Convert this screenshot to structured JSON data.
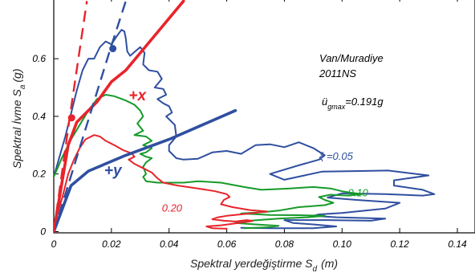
{
  "chart_data": {
    "type": "line",
    "title": "",
    "xlabel": "Spektral yerdeğiştirme S",
    "xlabel_sub": "d",
    "xlabel_unit": "(m)",
    "ylabel": "Spektral İvme S",
    "ylabel_sub": "a",
    "ylabel_unit": "(g)",
    "xlim": [
      0,
      0.15
    ],
    "ylim": [
      0,
      0.8
    ],
    "xticks": [
      "0",
      "0.02",
      "0.04",
      "0.06",
      "0.08",
      "0.10",
      "0.12",
      "0.14"
    ],
    "xtick_values": [
      0,
      0.02,
      0.04,
      0.06,
      0.08,
      0.1,
      0.12,
      0.14
    ],
    "yticks": [
      "0",
      "0.2",
      "0.4",
      "0.6"
    ],
    "ytick_values": [
      0,
      0.2,
      0.4,
      0.6
    ],
    "grid": false,
    "record": {
      "station": "Van/Muradiye",
      "code": "2011NS",
      "pga_label": "ü",
      "pga_sub": "gmax",
      "pga_value": "=0.191g"
    },
    "colors": {
      "blue": "#2f4fa0",
      "green": "#169a2a",
      "red": "#e8242b"
    },
    "curve_labels": [
      {
        "text": "ξ =0.05",
        "color": "blue",
        "x": 0.092,
        "y": 0.25
      },
      {
        "text": "0.10",
        "color": "green",
        "x": 0.102,
        "y": 0.123
      },
      {
        "text": "0.20",
        "color": "red",
        "x": 0.0375,
        "y": 0.07
      },
      {
        "text": "+x",
        "color": "red",
        "x": 0.026,
        "y": 0.455
      },
      {
        "text": "+y",
        "color": "blue",
        "x": 0.0175,
        "y": 0.195
      }
    ],
    "series": [
      {
        "style": "spectrum",
        "color": "blue",
        "points": [
          [
            0,
            0.19
          ],
          [
            0.002,
            0.26
          ],
          [
            0.004,
            0.33
          ],
          [
            0.006,
            0.41
          ],
          [
            0.008,
            0.49
          ],
          [
            0.01,
            0.56
          ],
          [
            0.012,
            0.6
          ],
          [
            0.014,
            0.6
          ],
          [
            0.016,
            0.64
          ],
          [
            0.018,
            0.66
          ],
          [
            0.02,
            0.65
          ],
          [
            0.022,
            0.68
          ],
          [
            0.0235,
            0.7
          ],
          [
            0.0245,
            0.695
          ],
          [
            0.025,
            0.67
          ],
          [
            0.0255,
            0.625
          ],
          [
            0.0265,
            0.61
          ],
          [
            0.028,
            0.623
          ],
          [
            0.03,
            0.64
          ],
          [
            0.0315,
            0.62
          ],
          [
            0.031,
            0.58
          ],
          [
            0.033,
            0.56
          ],
          [
            0.036,
            0.555
          ],
          [
            0.0375,
            0.53
          ],
          [
            0.035,
            0.5
          ],
          [
            0.038,
            0.495
          ],
          [
            0.039,
            0.475
          ],
          [
            0.036,
            0.46
          ],
          [
            0.038,
            0.445
          ],
          [
            0.04,
            0.435
          ],
          [
            0.041,
            0.413
          ],
          [
            0.039,
            0.4
          ],
          [
            0.04,
            0.39
          ],
          [
            0.042,
            0.37
          ],
          [
            0.0425,
            0.33
          ],
          [
            0.04,
            0.3
          ],
          [
            0.04,
            0.28
          ],
          [
            0.0425,
            0.255
          ],
          [
            0.045,
            0.25
          ],
          [
            0.05,
            0.253
          ],
          [
            0.055,
            0.275
          ],
          [
            0.06,
            0.28
          ],
          [
            0.065,
            0.27
          ],
          [
            0.07,
            0.3
          ],
          [
            0.075,
            0.303
          ],
          [
            0.08,
            0.293
          ],
          [
            0.085,
            0.31
          ],
          [
            0.09,
            0.29
          ],
          [
            0.094,
            0.265
          ],
          [
            0.092,
            0.25
          ],
          [
            0.085,
            0.23
          ],
          [
            0.075,
            0.2
          ],
          [
            0.08,
            0.18
          ],
          [
            0.093,
            0.208
          ],
          [
            0.104,
            0.21
          ],
          [
            0.116,
            0.212
          ],
          [
            0.13,
            0.195
          ],
          [
            0.118,
            0.178
          ],
          [
            0.118,
            0.16
          ],
          [
            0.128,
            0.145
          ],
          [
            0.132,
            0.13
          ],
          [
            0.128,
            0.125
          ],
          [
            0.115,
            0.13
          ],
          [
            0.1,
            0.133
          ],
          [
            0.095,
            0.118
          ],
          [
            0.105,
            0.11
          ],
          [
            0.12,
            0.1
          ],
          [
            0.115,
            0.08
          ],
          [
            0.105,
            0.07
          ],
          [
            0.1,
            0.065
          ],
          [
            0.092,
            0.06
          ],
          [
            0.09,
            0.055
          ],
          [
            0.098,
            0.05
          ],
          [
            0.115,
            0.045
          ],
          [
            0.11,
            0.038
          ],
          [
            0.095,
            0.04
          ],
          [
            0.08,
            0.04
          ],
          [
            0.083,
            0.03
          ],
          [
            0.09,
            0.025
          ],
          [
            0.098,
            0.018
          ],
          [
            0.09,
            0.012
          ],
          [
            0.075,
            0.012
          ],
          [
            0.065,
            0.013
          ]
        ]
      },
      {
        "style": "spectrum",
        "color": "green",
        "points": [
          [
            0,
            0.19
          ],
          [
            0.003,
            0.26
          ],
          [
            0.006,
            0.32
          ],
          [
            0.009,
            0.37
          ],
          [
            0.012,
            0.42
          ],
          [
            0.015,
            0.46
          ],
          [
            0.018,
            0.475
          ],
          [
            0.021,
            0.47
          ],
          [
            0.025,
            0.455
          ],
          [
            0.028,
            0.44
          ],
          [
            0.03,
            0.42
          ],
          [
            0.031,
            0.4
          ],
          [
            0.029,
            0.375
          ],
          [
            0.031,
            0.35
          ],
          [
            0.028,
            0.335
          ],
          [
            0.032,
            0.33
          ],
          [
            0.034,
            0.315
          ],
          [
            0.031,
            0.3
          ],
          [
            0.034,
            0.29
          ],
          [
            0.032,
            0.275
          ],
          [
            0.03,
            0.27
          ],
          [
            0.032,
            0.26
          ],
          [
            0.034,
            0.255
          ],
          [
            0.032,
            0.24
          ],
          [
            0.031,
            0.225
          ],
          [
            0.032,
            0.2
          ],
          [
            0.031,
            0.19
          ],
          [
            0.032,
            0.175
          ],
          [
            0.036,
            0.17
          ],
          [
            0.045,
            0.17
          ],
          [
            0.05,
            0.175
          ],
          [
            0.058,
            0.17
          ],
          [
            0.066,
            0.155
          ],
          [
            0.072,
            0.145
          ],
          [
            0.082,
            0.15
          ],
          [
            0.09,
            0.155
          ],
          [
            0.096,
            0.15
          ],
          [
            0.1,
            0.14
          ],
          [
            0.103,
            0.135
          ],
          [
            0.107,
            0.13
          ],
          [
            0.102,
            0.125
          ],
          [
            0.096,
            0.128
          ],
          [
            0.092,
            0.12
          ],
          [
            0.094,
            0.11
          ],
          [
            0.097,
            0.1
          ],
          [
            0.094,
            0.092
          ],
          [
            0.085,
            0.085
          ],
          [
            0.078,
            0.073
          ],
          [
            0.073,
            0.068
          ],
          [
            0.065,
            0.063
          ],
          [
            0.075,
            0.058
          ],
          [
            0.085,
            0.057
          ],
          [
            0.094,
            0.055
          ],
          [
            0.088,
            0.05
          ],
          [
            0.078,
            0.045
          ],
          [
            0.068,
            0.038
          ],
          [
            0.063,
            0.03
          ],
          [
            0.07,
            0.025
          ],
          [
            0.078,
            0.02
          ],
          [
            0.074,
            0.015
          ],
          [
            0.066,
            0.012
          ]
        ]
      },
      {
        "style": "spectrum",
        "color": "red",
        "points": [
          [
            0,
            0.02
          ],
          [
            0.003,
            0.12
          ],
          [
            0.005,
            0.2
          ],
          [
            0.007,
            0.25
          ],
          [
            0.009,
            0.29
          ],
          [
            0.011,
            0.32
          ],
          [
            0.014,
            0.335
          ],
          [
            0.016,
            0.33
          ],
          [
            0.018,
            0.315
          ],
          [
            0.021,
            0.3
          ],
          [
            0.024,
            0.283
          ],
          [
            0.027,
            0.272
          ],
          [
            0.028,
            0.26
          ],
          [
            0.026,
            0.25
          ],
          [
            0.028,
            0.235
          ],
          [
            0.03,
            0.225
          ],
          [
            0.034,
            0.205
          ],
          [
            0.036,
            0.185
          ],
          [
            0.038,
            0.17
          ],
          [
            0.043,
            0.16
          ],
          [
            0.05,
            0.15
          ],
          [
            0.056,
            0.14
          ],
          [
            0.06,
            0.13
          ],
          [
            0.061,
            0.12
          ],
          [
            0.059,
            0.11
          ],
          [
            0.058,
            0.095
          ],
          [
            0.062,
            0.085
          ],
          [
            0.068,
            0.075
          ],
          [
            0.074,
            0.07
          ],
          [
            0.067,
            0.062
          ],
          [
            0.06,
            0.055
          ],
          [
            0.057,
            0.05
          ],
          [
            0.055,
            0.043
          ],
          [
            0.059,
            0.038
          ],
          [
            0.063,
            0.035
          ],
          [
            0.067,
            0.04
          ],
          [
            0.069,
            0.037
          ],
          [
            0.064,
            0.03
          ],
          [
            0.058,
            0.022
          ],
          [
            0.053,
            0.018
          ],
          [
            0.055,
            0.012
          ],
          [
            0.06,
            0.01
          ]
        ]
      },
      {
        "style": "capacity",
        "color": "blue",
        "points": [
          [
            0,
            0
          ],
          [
            0.006,
            0.16
          ],
          [
            0.012,
            0.21
          ],
          [
            0.025,
            0.265
          ],
          [
            0.04,
            0.32
          ],
          [
            0.063,
            0.42
          ]
        ]
      },
      {
        "style": "capacity",
        "color": "red",
        "points": [
          [
            0,
            0
          ],
          [
            0.005,
            0.3
          ],
          [
            0.008,
            0.38
          ],
          [
            0.015,
            0.45
          ],
          [
            0.02,
            0.52
          ],
          [
            0.025,
            0.56
          ],
          [
            0.035,
            0.68
          ],
          [
            0.045,
            0.8
          ]
        ]
      },
      {
        "style": "dashed",
        "color": "blue",
        "points": [
          [
            0,
            0
          ],
          [
            0.0195,
            0.63
          ],
          [
            0.025,
            0.8
          ]
        ]
      },
      {
        "style": "dashed",
        "color": "red",
        "points": [
          [
            0,
            0
          ],
          [
            0.0055,
            0.395
          ],
          [
            0.0115,
            0.8
          ]
        ]
      }
    ],
    "markers": [
      {
        "color": "blue",
        "x": 0.0205,
        "y": 0.635
      },
      {
        "color": "red",
        "x": 0.0062,
        "y": 0.395
      }
    ]
  }
}
